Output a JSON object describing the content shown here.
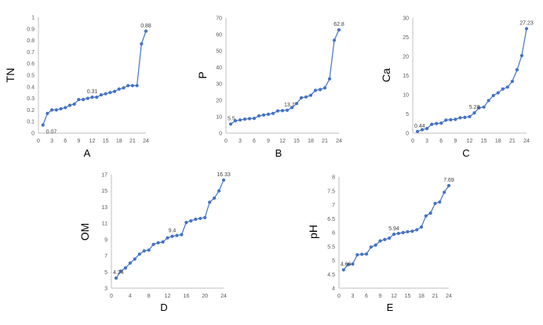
{
  "style": {
    "line_color": "#4472c4",
    "marker_color": "#4472c4",
    "axis_color": "#bfbfbf",
    "text_color": "#595959"
  },
  "chart_data": [
    {
      "type": "line",
      "caption": "A",
      "ylabel": "TN",
      "xlabel": "",
      "x": [
        1,
        2,
        3,
        4,
        5,
        6,
        7,
        8,
        9,
        10,
        11,
        12,
        13,
        14,
        15,
        16,
        17,
        18,
        19,
        20,
        21,
        22,
        23,
        24
      ],
      "x_ticks": [
        0,
        3,
        6,
        9,
        12,
        15,
        18,
        21,
        24
      ],
      "xlim": [
        0,
        24
      ],
      "ylim": [
        0,
        1
      ],
      "y_ticks": [
        0,
        0.1,
        0.2,
        0.3,
        0.4,
        0.5,
        0.6,
        0.7,
        0.8,
        0.9,
        1
      ],
      "y_tick_labels": [
        "0",
        "0.1",
        "0.2",
        "0.3",
        "0.4",
        "0.5",
        "0.6",
        "0.7",
        "0.8",
        "0.9",
        "1"
      ],
      "series": [
        {
          "values": [
            0.07,
            0.17,
            0.2,
            0.2,
            0.21,
            0.22,
            0.24,
            0.25,
            0.29,
            0.29,
            0.3,
            0.31,
            0.31,
            0.33,
            0.34,
            0.35,
            0.36,
            0.38,
            0.39,
            0.41,
            0.41,
            0.41,
            0.77,
            0.88
          ]
        }
      ],
      "annotations": [
        {
          "x": 1,
          "y": 0.07,
          "text": "0.07",
          "pos": "below-right"
        },
        {
          "x": 12,
          "y": 0.31,
          "text": "0.31",
          "pos": "above"
        },
        {
          "x": 24,
          "y": 0.88,
          "text": "0.88",
          "pos": "above"
        }
      ]
    },
    {
      "type": "line",
      "caption": "B",
      "ylabel": "P",
      "xlabel": "",
      "x": [
        1,
        2,
        3,
        4,
        5,
        6,
        7,
        8,
        9,
        10,
        11,
        12,
        13,
        14,
        15,
        16,
        17,
        18,
        19,
        20,
        21,
        22,
        23,
        24
      ],
      "x_ticks": [
        0,
        3,
        6,
        9,
        12,
        15,
        18,
        21,
        24
      ],
      "xlim": [
        0,
        24
      ],
      "ylim": [
        0,
        70
      ],
      "y_ticks": [
        0,
        10,
        20,
        30,
        40,
        50,
        60,
        70
      ],
      "y_tick_labels": [
        "0",
        "10",
        "20",
        "30",
        "40",
        "50",
        "60",
        "70"
      ],
      "series": [
        {
          "values": [
            5.5,
            7.5,
            8,
            8.5,
            8.8,
            9,
            10.5,
            11,
            11.5,
            12,
            13.5,
            13.7,
            13.9,
            15.5,
            18,
            21.5,
            22,
            23,
            26,
            26.5,
            27.5,
            33,
            56.5,
            62.8
          ]
        }
      ],
      "annotations": [
        {
          "x": 1,
          "y": 5.5,
          "text": "5.5",
          "pos": "above"
        },
        {
          "x": 12,
          "y": 13.7,
          "text": "13.7",
          "pos": "above-right"
        },
        {
          "x": 24,
          "y": 62.8,
          "text": "62.8",
          "pos": "above"
        }
      ]
    },
    {
      "type": "line",
      "caption": "C",
      "ylabel": "Ca",
      "xlabel": "",
      "x": [
        1,
        2,
        3,
        4,
        5,
        6,
        7,
        8,
        9,
        10,
        11,
        12,
        13,
        14,
        15,
        16,
        17,
        18,
        19,
        20,
        21,
        22,
        23,
        24
      ],
      "x_ticks": [
        0,
        3,
        6,
        9,
        12,
        15,
        18,
        21,
        24
      ],
      "xlim": [
        0,
        24
      ],
      "ylim": [
        0,
        30
      ],
      "y_ticks": [
        0,
        5,
        10,
        15,
        20,
        25,
        30
      ],
      "y_tick_labels": [
        "0",
        "5",
        "10",
        "15",
        "20",
        "25",
        "30"
      ],
      "series": [
        {
          "values": [
            0.44,
            0.9,
            1.2,
            2.3,
            2.5,
            2.6,
            3.4,
            3.5,
            3.6,
            4,
            4.1,
            4.3,
            5.28,
            6.6,
            6.8,
            8.5,
            9.8,
            10.5,
            11.5,
            12,
            13.5,
            16.5,
            20.2,
            27.23
          ]
        }
      ],
      "annotations": [
        {
          "x": 1,
          "y": 0.44,
          "text": "0.44",
          "pos": "above"
        },
        {
          "x": 13,
          "y": 5.28,
          "text": "5.28",
          "pos": "above"
        },
        {
          "x": 24,
          "y": 27.23,
          "text": "27.23",
          "pos": "above"
        }
      ]
    },
    {
      "type": "line",
      "caption": "D",
      "ylabel": "OM",
      "xlabel": "",
      "x": [
        1,
        2,
        3,
        4,
        5,
        6,
        7,
        8,
        9,
        10,
        11,
        12,
        13,
        14,
        15,
        16,
        17,
        18,
        19,
        20,
        21,
        22,
        23,
        24
      ],
      "x_ticks": [
        0,
        4,
        8,
        12,
        16,
        20,
        24
      ],
      "xlim": [
        0,
        24
      ],
      "ylim": [
        3,
        17
      ],
      "y_ticks": [
        3,
        5,
        7,
        9,
        11,
        13,
        15,
        17
      ],
      "y_tick_labels": [
        "3",
        "5",
        "7",
        "9",
        "11",
        "13",
        "15",
        "17"
      ],
      "series": [
        {
          "values": [
            4.24,
            5.1,
            5.5,
            6.1,
            6.6,
            7.2,
            7.6,
            7.7,
            8.4,
            8.6,
            8.7,
            9.2,
            9.4,
            9.5,
            9.6,
            11.1,
            11.3,
            11.5,
            11.6,
            11.7,
            13.6,
            14.1,
            15,
            16.33
          ]
        }
      ],
      "annotations": [
        {
          "x": 1,
          "y": 4.24,
          "text": "4.24",
          "pos": "above"
        },
        {
          "x": 13,
          "y": 9.4,
          "text": "9.4",
          "pos": "above"
        },
        {
          "x": 24,
          "y": 16.33,
          "text": "16.33",
          "pos": "above"
        }
      ]
    },
    {
      "type": "line",
      "caption": "E",
      "ylabel": "pH",
      "xlabel": "",
      "x": [
        1,
        2,
        3,
        4,
        5,
        6,
        7,
        8,
        9,
        10,
        11,
        12,
        13,
        14,
        15,
        16,
        17,
        18,
        19,
        20,
        21,
        22,
        23,
        24
      ],
      "x_ticks": [
        0,
        3,
        6,
        9,
        12,
        15,
        18,
        21,
        24
      ],
      "xlim": [
        0,
        24
      ],
      "ylim": [
        4,
        8
      ],
      "y_ticks": [
        4,
        4.5,
        5,
        5.5,
        6,
        6.5,
        7,
        7.5,
        8
      ],
      "y_tick_labels": [
        "4",
        "4.5",
        "5",
        "5.5",
        "6",
        "6.5",
        "7",
        "7.5",
        "8"
      ],
      "series": [
        {
          "values": [
            4.66,
            4.85,
            4.87,
            5.2,
            5.22,
            5.23,
            5.48,
            5.55,
            5.7,
            5.75,
            5.8,
            5.94,
            5.97,
            6,
            6.03,
            6.05,
            6.1,
            6.2,
            6.6,
            6.7,
            7.05,
            7.1,
            7.45,
            7.69
          ]
        }
      ],
      "annotations": [
        {
          "x": 1,
          "y": 4.66,
          "text": "4.66",
          "pos": "above"
        },
        {
          "x": 12,
          "y": 5.94,
          "text": "5.94",
          "pos": "above"
        },
        {
          "x": 24,
          "y": 7.69,
          "text": "7.69",
          "pos": "above"
        }
      ]
    }
  ]
}
